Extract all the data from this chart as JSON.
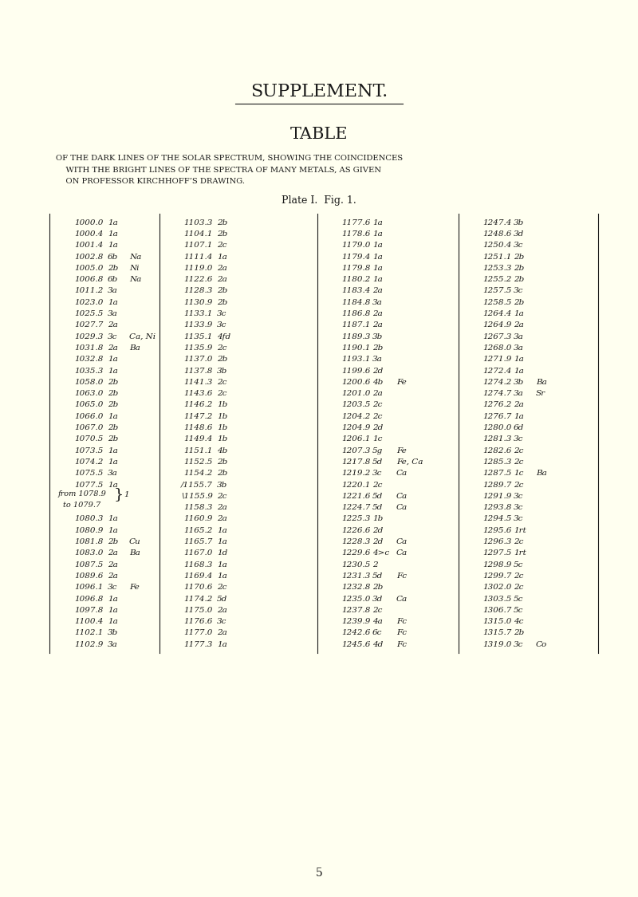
{
  "bg_color": "#FFFFF0",
  "title1": "SUPPLEMENT.",
  "title2": "TABLE",
  "subtitle": "OF THE DARK LINES OF THE SOLAR SPECTRUM, SHOWING THE COINCIDENCES\n    WITH THE BRIGHT LINES OF THE SPECTRA OF MANY METALS, AS GIVEN\n    ON PROFESSOR KIRCHHOFF’S DRAWING.",
  "plate_text": "Plate I.  Fig. 1.",
  "page_number": "5",
  "col1": [
    [
      "1000.0",
      "1a",
      ""
    ],
    [
      "1000.4",
      "1a",
      ""
    ],
    [
      "1001.4",
      "1a",
      ""
    ],
    [
      "1002.8",
      "6b",
      "Na"
    ],
    [
      "1005.0",
      "2b",
      "Ni"
    ],
    [
      "1006.8",
      "6b",
      "Na"
    ],
    [
      "1011.2",
      "3a",
      ""
    ],
    [
      "1023.0",
      "1a",
      ""
    ],
    [
      "1025.5",
      "3a",
      ""
    ],
    [
      "1027.7",
      "2a",
      ""
    ],
    [
      "1029.3",
      "3c",
      "Ca, Ni"
    ],
    [
      "1031.8",
      "2a",
      "Ba"
    ],
    [
      "1032.8",
      "1a",
      ""
    ],
    [
      "1035.3",
      "1a",
      ""
    ],
    [
      "1058.0",
      "2b",
      ""
    ],
    [
      "1063.0",
      "2b",
      ""
    ],
    [
      "1065.0",
      "2b",
      ""
    ],
    [
      "1066.0",
      "1a",
      ""
    ],
    [
      "1067.0",
      "2b",
      ""
    ],
    [
      "1070.5",
      "2b",
      ""
    ],
    [
      "1073.5",
      "1a",
      ""
    ],
    [
      "1074.2",
      "1a",
      ""
    ],
    [
      "1075.5",
      "3a",
      ""
    ],
    [
      "1077.5",
      "1a",
      ""
    ],
    [
      "from 1078.9",
      "1",
      ""
    ],
    [
      "to 1079.7",
      "",
      ""
    ],
    [
      "1080.3",
      "1a",
      ""
    ],
    [
      "1080.9",
      "1a",
      ""
    ],
    [
      "1081.8",
      "2b",
      "Cu"
    ],
    [
      "1083.0",
      "2a",
      "Ba"
    ],
    [
      "1087.5",
      "2a",
      ""
    ],
    [
      "1089.6",
      "2a",
      ""
    ],
    [
      "1096.1",
      "3c",
      "Fe"
    ],
    [
      "1096.8",
      "1a",
      ""
    ],
    [
      "1097.8",
      "1a",
      ""
    ],
    [
      "1100.4",
      "1a",
      ""
    ],
    [
      "1102.1",
      "3b",
      ""
    ],
    [
      "1102.9",
      "3a",
      ""
    ]
  ],
  "col2": [
    [
      "1103.3",
      "2b",
      ""
    ],
    [
      "1104.1",
      "2b",
      ""
    ],
    [
      "1107.1",
      "2c",
      ""
    ],
    [
      "1111.4",
      "1a",
      ""
    ],
    [
      "1119.0",
      "2a",
      ""
    ],
    [
      "1122.6",
      "2a",
      ""
    ],
    [
      "1128.3",
      "2b",
      ""
    ],
    [
      "1130.9",
      "2b",
      ""
    ],
    [
      "1133.1",
      "3c",
      ""
    ],
    [
      "1133.9",
      "3c",
      ""
    ],
    [
      "1135.1",
      "4fd",
      ""
    ],
    [
      "1135.9",
      "2c",
      ""
    ],
    [
      "1137.0",
      "2b",
      ""
    ],
    [
      "1137.8",
      "3b",
      ""
    ],
    [
      "1141.3",
      "2c",
      ""
    ],
    [
      "1143.6",
      "2c",
      ""
    ],
    [
      "1146.2",
      "1b",
      ""
    ],
    [
      "1147.2",
      "1b",
      ""
    ],
    [
      "1148.6",
      "1b",
      ""
    ],
    [
      "1149.4",
      "1b",
      ""
    ],
    [
      "1151.1",
      "4b",
      ""
    ],
    [
      "1152.5",
      "2b",
      ""
    ],
    [
      "1154.2",
      "2b",
      ""
    ],
    [
      "/1155.7",
      "3b",
      ""
    ],
    [
      "\\1155.9",
      "2c",
      ""
    ],
    [
      "1158.3",
      "2a",
      ""
    ],
    [
      "1160.9",
      "2a",
      ""
    ],
    [
      "1165.2",
      "1a",
      ""
    ],
    [
      "1165.7",
      "1a",
      ""
    ],
    [
      "1167.0",
      "1d",
      ""
    ],
    [
      "1168.3",
      "1a",
      ""
    ],
    [
      "1169.4",
      "1a",
      ""
    ],
    [
      "1170.6",
      "2c",
      ""
    ],
    [
      "1174.2",
      "5d",
      ""
    ],
    [
      "1175.0",
      "2a",
      ""
    ],
    [
      "1176.6",
      "3c",
      ""
    ],
    [
      "1177.0",
      "2a",
      ""
    ],
    [
      "1177.3",
      "1a",
      ""
    ]
  ],
  "col3": [
    [
      "1177.6",
      "1a",
      ""
    ],
    [
      "1178.6",
      "1a",
      ""
    ],
    [
      "1179.0",
      "1a",
      ""
    ],
    [
      "1179.4",
      "1a",
      ""
    ],
    [
      "1179.8",
      "1a",
      ""
    ],
    [
      "1180.2",
      "1a",
      ""
    ],
    [
      "1183.4",
      "2a",
      ""
    ],
    [
      "1184.8",
      "3a",
      ""
    ],
    [
      "1186.8",
      "2a",
      ""
    ],
    [
      "1187.1",
      "2a",
      ""
    ],
    [
      "1189.3",
      "3b",
      ""
    ],
    [
      "1190.1",
      "2b",
      ""
    ],
    [
      "1193.1",
      "3a",
      ""
    ],
    [
      "1199.6",
      "2d",
      ""
    ],
    [
      "1200.6",
      "4b",
      "Fe"
    ],
    [
      "1201.0",
      "2a",
      ""
    ],
    [
      "1203.5",
      "2c",
      ""
    ],
    [
      "1204.2",
      "2c",
      ""
    ],
    [
      "1204.9",
      "2d",
      ""
    ],
    [
      "1206.1",
      "1c",
      ""
    ],
    [
      "1207.3",
      "5g",
      "Fe"
    ],
    [
      "1217.8",
      "5d",
      "Fe, Ca"
    ],
    [
      "1219.2",
      "3c",
      "Ca"
    ],
    [
      "1220.1",
      "2c",
      ""
    ],
    [
      "1221.6",
      "5d",
      "Ca"
    ],
    [
      "1224.7",
      "5d",
      "Ca"
    ],
    [
      "1225.3",
      "1b",
      ""
    ],
    [
      "1226.6",
      "2d",
      ""
    ],
    [
      "1228.3",
      "2d",
      "Ca"
    ],
    [
      "1229.6",
      "4>c",
      "Ca"
    ],
    [
      "1230.5",
      "2",
      ""
    ],
    [
      "1231.3",
      "5d",
      "Fc"
    ],
    [
      "1232.8",
      "2b",
      ""
    ],
    [
      "1235.0",
      "3d",
      "Ca"
    ],
    [
      "1237.8",
      "2c",
      ""
    ],
    [
      "1239.9",
      "4a",
      "Fc"
    ],
    [
      "1242.6",
      "6c",
      "Fc"
    ],
    [
      "1245.6",
      "4d",
      "Fc"
    ]
  ],
  "col4": [
    [
      "1247.4",
      "3b",
      ""
    ],
    [
      "1248.6",
      "3d",
      ""
    ],
    [
      "1250.4",
      "3c",
      ""
    ],
    [
      "1251.1",
      "2b",
      ""
    ],
    [
      "1253.3",
      "2b",
      ""
    ],
    [
      "1255.2",
      "2b",
      ""
    ],
    [
      "1257.5",
      "3c",
      ""
    ],
    [
      "1258.5",
      "2b",
      ""
    ],
    [
      "1264.4",
      "1a",
      ""
    ],
    [
      "1264.9",
      "2a",
      ""
    ],
    [
      "1267.3",
      "3a",
      ""
    ],
    [
      "1268.0",
      "3a",
      ""
    ],
    [
      "1271.9",
      "1a",
      ""
    ],
    [
      "1272.4",
      "1a",
      ""
    ],
    [
      "1274.2",
      "3b",
      "Ba"
    ],
    [
      "1274.7",
      "3a",
      "Sr"
    ],
    [
      "1276.2",
      "2a",
      ""
    ],
    [
      "1276.7",
      "1a",
      ""
    ],
    [
      "1280.0",
      "6d",
      ""
    ],
    [
      "1281.3",
      "3c",
      ""
    ],
    [
      "1282.6",
      "2c",
      ""
    ],
    [
      "1285.3",
      "2c",
      ""
    ],
    [
      "1287.5",
      "1c",
      "Ba"
    ],
    [
      "1289.7",
      "2c",
      ""
    ],
    [
      "1291.9",
      "3c",
      ""
    ],
    [
      "1293.8",
      "3c",
      ""
    ],
    [
      "1294.5",
      "3c",
      ""
    ],
    [
      "1295.6",
      "1rt",
      ""
    ],
    [
      "1296.3",
      "2c",
      ""
    ],
    [
      "1297.5",
      "1rt",
      ""
    ],
    [
      "1298.9",
      "5c",
      ""
    ],
    [
      "1299.7",
      "2c",
      ""
    ],
    [
      "1302.0",
      "2c",
      ""
    ],
    [
      "1303.5",
      "5c",
      ""
    ],
    [
      "1306.7",
      "5c",
      ""
    ],
    [
      "1315.0",
      "4c",
      ""
    ],
    [
      "1315.7",
      "2b",
      ""
    ],
    [
      "1319.0",
      "3c",
      "Co"
    ]
  ]
}
